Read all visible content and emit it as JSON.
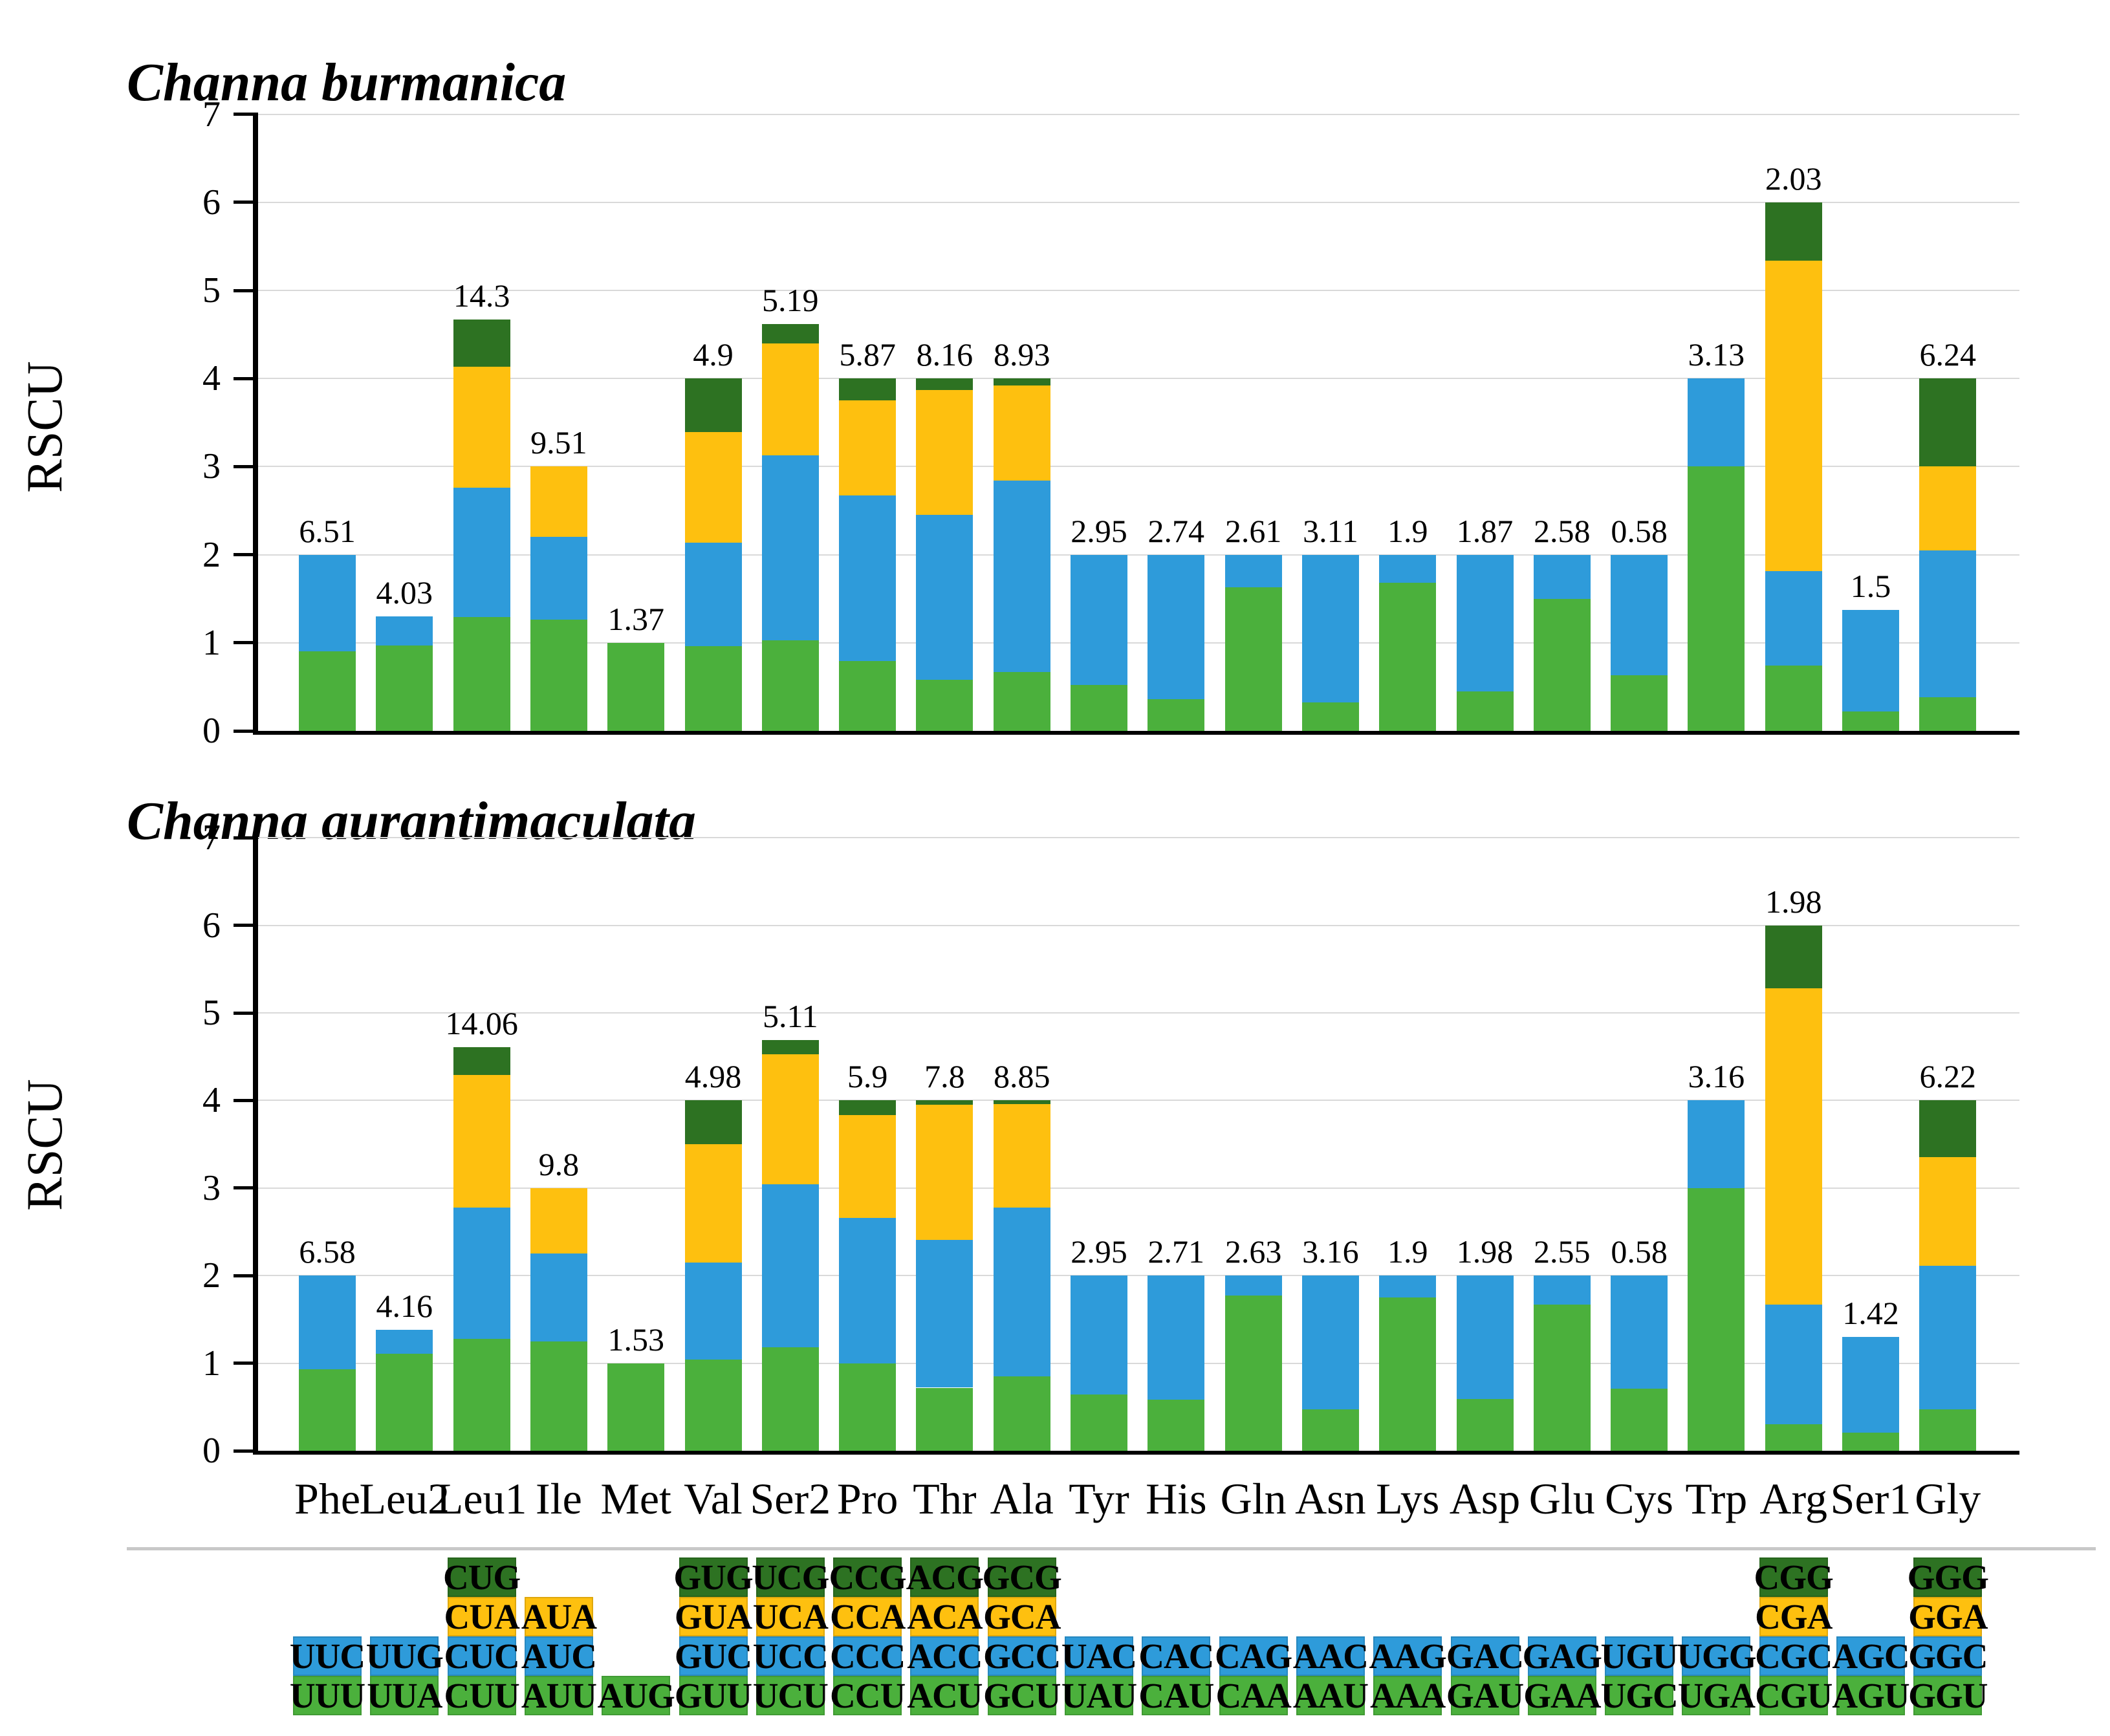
{
  "figure": {
    "description": "Relative synonymous codon usage (RSCU) stacked bar charts for two Channa species with codon color table"
  },
  "colors": {
    "green": "#4BB03C",
    "blue": "#2E9BDA",
    "yellow": "#FEC00F",
    "dkgreen": "#2D7222",
    "axis": "#000000",
    "gridline": "#D9D9D9",
    "divider": "#C8C8C8",
    "text": "#000000"
  },
  "categories": [
    "Phe",
    "Leu2",
    "Leu1",
    "Ile",
    "Met",
    "Val",
    "Ser2",
    "Pro",
    "Thr",
    "Ala",
    "Tyr",
    "His",
    "Gln",
    "Asn",
    "Lys",
    "Asp",
    "Glu",
    "Cys",
    "Trp",
    "Arg",
    "Ser1",
    "Gly"
  ],
  "chart_data": [
    {
      "type": "bar",
      "stacked": true,
      "title": "Channa burmanica",
      "ylabel": "RSCU",
      "xlabel": "",
      "ylim": [
        0,
        7
      ],
      "yticks": [
        0,
        1,
        2,
        3,
        4,
        5,
        6,
        7
      ],
      "grid": true,
      "legend": "none",
      "categories": [
        "Phe",
        "Leu2",
        "Leu1",
        "Ile",
        "Met",
        "Val",
        "Ser2",
        "Pro",
        "Thr",
        "Ala",
        "Tyr",
        "His",
        "Gln",
        "Asn",
        "Lys",
        "Asp",
        "Glu",
        "Cys",
        "Trp",
        "Arg",
        "Ser1",
        "Gly"
      ],
      "bar_labels": [
        "6.51",
        "4.03",
        "14.3",
        "9.51",
        "1.37",
        "4.9",
        "5.19",
        "5.87",
        "8.16",
        "8.93",
        "2.95",
        "2.74",
        "2.61",
        "3.11",
        "1.9",
        "1.87",
        "2.58",
        "0.58",
        "3.13",
        "2.03",
        "1.5",
        "6.24"
      ],
      "stacks": [
        {
          "green": 0.9,
          "blue": 1.1
        },
        {
          "green": 0.97,
          "blue": 0.33
        },
        {
          "green": 1.29,
          "blue": 1.47,
          "yellow": 1.37,
          "dkgreen": 0.54
        },
        {
          "green": 1.26,
          "blue": 0.94,
          "yellow": 0.8
        },
        {
          "green": 1.0
        },
        {
          "green": 0.96,
          "blue": 1.18,
          "yellow": 1.25,
          "dkgreen": 0.61
        },
        {
          "green": 1.03,
          "blue": 2.1,
          "yellow": 1.27,
          "dkgreen": 0.22
        },
        {
          "green": 0.79,
          "blue": 1.88,
          "yellow": 1.08,
          "dkgreen": 0.25
        },
        {
          "green": 0.58,
          "blue": 1.87,
          "yellow": 1.42,
          "dkgreen": 0.13
        },
        {
          "green": 0.67,
          "blue": 2.17,
          "yellow": 1.08,
          "dkgreen": 0.08
        },
        {
          "green": 0.52,
          "blue": 1.48
        },
        {
          "green": 0.36,
          "blue": 1.64
        },
        {
          "green": 1.63,
          "blue": 0.37
        },
        {
          "green": 0.32,
          "blue": 1.68
        },
        {
          "green": 1.68,
          "blue": 0.32
        },
        {
          "green": 0.45,
          "blue": 1.55
        },
        {
          "green": 1.5,
          "blue": 0.5
        },
        {
          "green": 0.63,
          "blue": 1.37
        },
        {
          "green": 3.0,
          "blue": 1.0
        },
        {
          "green": 0.74,
          "blue": 1.07,
          "yellow": 3.53,
          "dkgreen": 0.66
        },
        {
          "green": 0.22,
          "blue": 1.15
        },
        {
          "green": 0.38,
          "blue": 1.67,
          "yellow": 0.95,
          "dkgreen": 1.0
        }
      ]
    },
    {
      "type": "bar",
      "stacked": true,
      "title": "Channa aurantimaculata",
      "ylabel": "RSCU",
      "xlabel": "",
      "ylim": [
        0,
        7
      ],
      "yticks": [
        0,
        1,
        2,
        3,
        4,
        5,
        6,
        7
      ],
      "grid": true,
      "legend": "none",
      "categories": [
        "Phe",
        "Leu2",
        "Leu1",
        "Ile",
        "Met",
        "Val",
        "Ser2",
        "Pro",
        "Thr",
        "Ala",
        "Tyr",
        "His",
        "Gln",
        "Asn",
        "Lys",
        "Asp",
        "Glu",
        "Cys",
        "Trp",
        "Arg",
        "Ser1",
        "Gly"
      ],
      "bar_labels": [
        "6.58",
        "4.16",
        "14.06",
        "9.8",
        "1.53",
        "4.98",
        "5.11",
        "5.9",
        "7.8",
        "8.85",
        "2.95",
        "2.71",
        "2.63",
        "3.16",
        "1.9",
        "1.98",
        "2.55",
        "0.58",
        "3.16",
        "1.98",
        "1.42",
        "6.22"
      ],
      "stacks": [
        {
          "green": 0.93,
          "blue": 1.07
        },
        {
          "green": 1.11,
          "blue": 0.27
        },
        {
          "green": 1.28,
          "blue": 1.5,
          "yellow": 1.51,
          "dkgreen": 0.32
        },
        {
          "green": 1.25,
          "blue": 1.0,
          "yellow": 0.75
        },
        {
          "green": 1.0
        },
        {
          "green": 1.04,
          "blue": 1.11,
          "yellow": 1.35,
          "dkgreen": 0.5
        },
        {
          "green": 1.18,
          "blue": 1.86,
          "yellow": 1.49,
          "dkgreen": 0.16
        },
        {
          "green": 1.0,
          "blue": 1.66,
          "yellow": 1.17,
          "dkgreen": 0.17
        },
        {
          "green": 0.72,
          "blue": 1.69,
          "yellow": 1.54,
          "dkgreen": 0.05
        },
        {
          "green": 0.85,
          "blue": 1.93,
          "yellow": 1.18,
          "dkgreen": 0.04
        },
        {
          "green": 0.64,
          "blue": 1.36
        },
        {
          "green": 0.58,
          "blue": 1.42
        },
        {
          "green": 1.77,
          "blue": 0.23
        },
        {
          "green": 0.47,
          "blue": 1.53
        },
        {
          "green": 1.75,
          "blue": 0.25
        },
        {
          "green": 0.59,
          "blue": 1.41
        },
        {
          "green": 1.67,
          "blue": 0.33
        },
        {
          "green": 0.71,
          "blue": 1.29
        },
        {
          "green": 3.0,
          "blue": 1.0
        },
        {
          "green": 0.3,
          "blue": 1.37,
          "yellow": 3.61,
          "dkgreen": 0.72
        },
        {
          "green": 0.21,
          "blue": 1.09
        },
        {
          "green": 0.47,
          "blue": 1.64,
          "yellow": 1.24,
          "dkgreen": 0.65
        }
      ]
    }
  ],
  "codon_table": {
    "rows_top_to_bottom": [
      "dkgreen",
      "yellow",
      "blue",
      "green"
    ],
    "columns": [
      {
        "amino_acid": "Phe",
        "green": "UUU",
        "blue": "UUC"
      },
      {
        "amino_acid": "Leu2",
        "green": "UUA",
        "blue": "UUG"
      },
      {
        "amino_acid": "Leu1",
        "green": "CUU",
        "blue": "CUC",
        "yellow": "CUA",
        "dkgreen": "CUG"
      },
      {
        "amino_acid": "Ile",
        "green": "AUU",
        "blue": "AUC",
        "yellow": "AUA"
      },
      {
        "amino_acid": "Met",
        "green": "AUG"
      },
      {
        "amino_acid": "Val",
        "green": "GUU",
        "blue": "GUC",
        "yellow": "GUA",
        "dkgreen": "GUG"
      },
      {
        "amino_acid": "Ser2",
        "green": "UCU",
        "blue": "UCC",
        "yellow": "UCA",
        "dkgreen": "UCG"
      },
      {
        "amino_acid": "Pro",
        "green": "CCU",
        "blue": "CCC",
        "yellow": "CCA",
        "dkgreen": "CCG"
      },
      {
        "amino_acid": "Thr",
        "green": "ACU",
        "blue": "ACC",
        "yellow": "ACA",
        "dkgreen": "ACG"
      },
      {
        "amino_acid": "Ala",
        "green": "GCU",
        "blue": "GCC",
        "yellow": "GCA",
        "dkgreen": "GCG"
      },
      {
        "amino_acid": "Tyr",
        "green": "UAU",
        "blue": "UAC"
      },
      {
        "amino_acid": "His",
        "green": "CAU",
        "blue": "CAC"
      },
      {
        "amino_acid": "Gln",
        "green": "CAA",
        "blue": "CAG"
      },
      {
        "amino_acid": "Asn",
        "green": "AAU",
        "blue": "AAC"
      },
      {
        "amino_acid": "Lys",
        "green": "AAA",
        "blue": "AAG"
      },
      {
        "amino_acid": "Asp",
        "green": "GAU",
        "blue": "GAC"
      },
      {
        "amino_acid": "Glu",
        "green": "GAA",
        "blue": "GAG"
      },
      {
        "amino_acid": "Cys",
        "green": "UGC",
        "blue": "UGU"
      },
      {
        "amino_acid": "Trp",
        "green": "UGA",
        "blue": "UGG"
      },
      {
        "amino_acid": "Arg",
        "green": "CGU",
        "blue": "CGC",
        "yellow": "CGA",
        "dkgreen": "CGG"
      },
      {
        "amino_acid": "Ser1",
        "green": "AGU",
        "blue": "AGC"
      },
      {
        "amino_acid": "Gly",
        "green": "GGU",
        "blue": "GGC",
        "yellow": "GGA",
        "dkgreen": "GGG"
      }
    ]
  }
}
